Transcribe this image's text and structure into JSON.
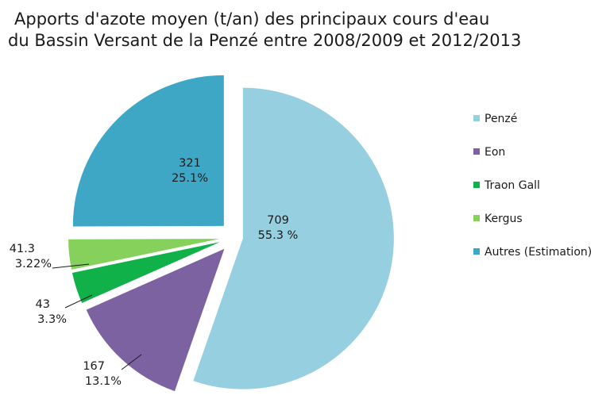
{
  "chart_data": {
    "type": "pie",
    "title": "Apports d'azote moyen (t/an) des principaux cours d'eau",
    "subtitle": "du Bassin Versant de la Penzé entre 2008/2009 et 2012/2013",
    "legend_position": "right",
    "slices": [
      {
        "label": "Penzé",
        "value": 709,
        "percent_text": "55.3 %",
        "color": "#95cfe0"
      },
      {
        "label": "Eon",
        "value": 167,
        "percent_text": "13.1%",
        "color": "#7c62a0"
      },
      {
        "label": "Traon Gall",
        "value": 43,
        "percent_text": "3.3%",
        "color": "#10b148"
      },
      {
        "label": "Kergus",
        "value": 41.3,
        "percent_text": "3.22%",
        "color": "#86d15b"
      },
      {
        "label": "Autres (Estimation)",
        "value": 321,
        "percent_text": "25.1%",
        "color": "#3ea7c6"
      }
    ]
  }
}
